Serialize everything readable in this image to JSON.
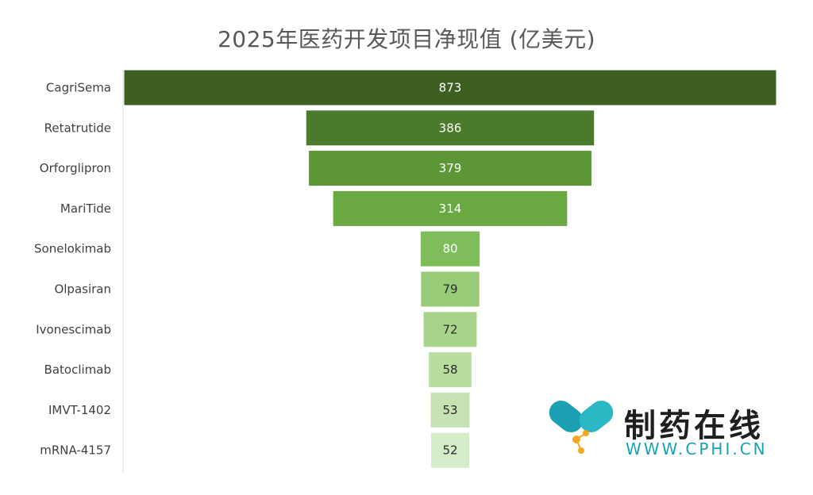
{
  "chart_data": {
    "type": "bar",
    "orientation": "horizontal-funnel",
    "title": "2025年医药开发项目净现值 (亿美元)",
    "categories": [
      "CagriSema",
      "Retatrutide",
      "Orforglipron",
      "MariTide",
      "Sonelokimab",
      "Olpasiran",
      "Ivonescimab",
      "Batoclimab",
      "IMVT-1402",
      "mRNA-4157"
    ],
    "values": [
      873,
      386,
      379,
      314,
      80,
      79,
      72,
      58,
      53,
      52
    ],
    "colors": [
      "#3e5f22",
      "#4a7a2b",
      "#5c9636",
      "#6aa842",
      "#7fbd5a",
      "#98cb77",
      "#a8d38a",
      "#b9dca0",
      "#c7e3b3",
      "#d6ebc7"
    ],
    "label_colors": [
      "#ffffff",
      "#ffffff",
      "#ffffff",
      "#ffffff",
      "#ffffff",
      "#2b2b2b",
      "#2b2b2b",
      "#2b2b2b",
      "#2b2b2b",
      "#2b2b2b"
    ],
    "legend": "none",
    "grid": false
  },
  "watermark": {
    "name": "制药在线",
    "url": "WWW.CPHI.CN"
  }
}
